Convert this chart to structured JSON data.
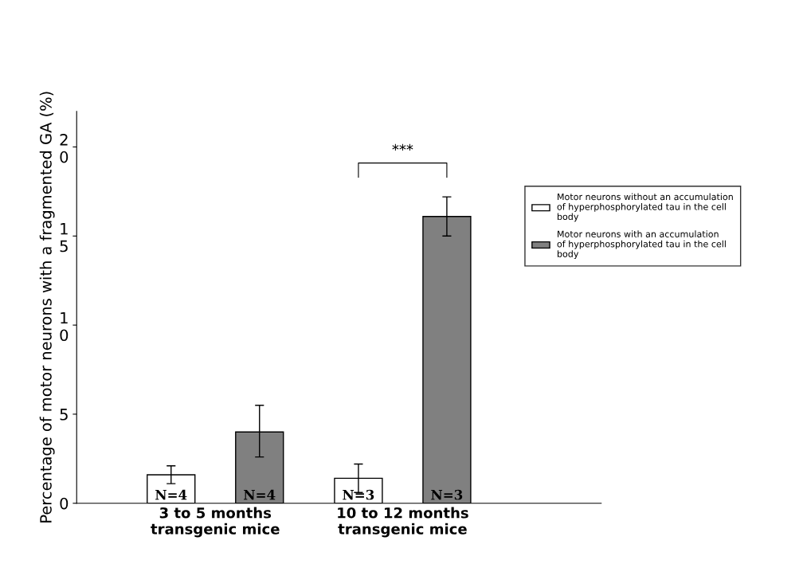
{
  "chart_data": {
    "type": "bar",
    "ylabel": "Percentage of motor neurons with a fragmented GA (%)",
    "categories": [
      "3 to 5 months\ntransgenic mice",
      "10 to 12 months\ntransgenic mice"
    ],
    "series": [
      {
        "name": "Motor neurons without an accumulation\nof hyperphosphorylated tau in the cell\nbody",
        "color": "#ffffff",
        "values": [
          1.6,
          1.4
        ],
        "errors": [
          [
            1.1,
            2.1
          ],
          [
            0.6,
            2.2
          ]
        ]
      },
      {
        "name": "Motor neurons with an accumulation\nof hyperphosphorylated tau in the cell\nbody",
        "color": "#808080",
        "values": [
          4.0,
          16.1
        ],
        "errors": [
          [
            2.6,
            5.5
          ],
          [
            15.0,
            17.2
          ]
        ]
      }
    ],
    "ylim": [
      0,
      22
    ],
    "yticks": [
      0,
      5,
      {
        "value": 10,
        "label": "1\n0"
      },
      {
        "value": 15,
        "label": "1\n5"
      },
      {
        "value": 20,
        "label": "2\n0"
      }
    ],
    "annotations": [
      "***",
      "N=4",
      "N=4",
      "N=3",
      "N=3"
    ],
    "legend": "right",
    "grid": false
  }
}
